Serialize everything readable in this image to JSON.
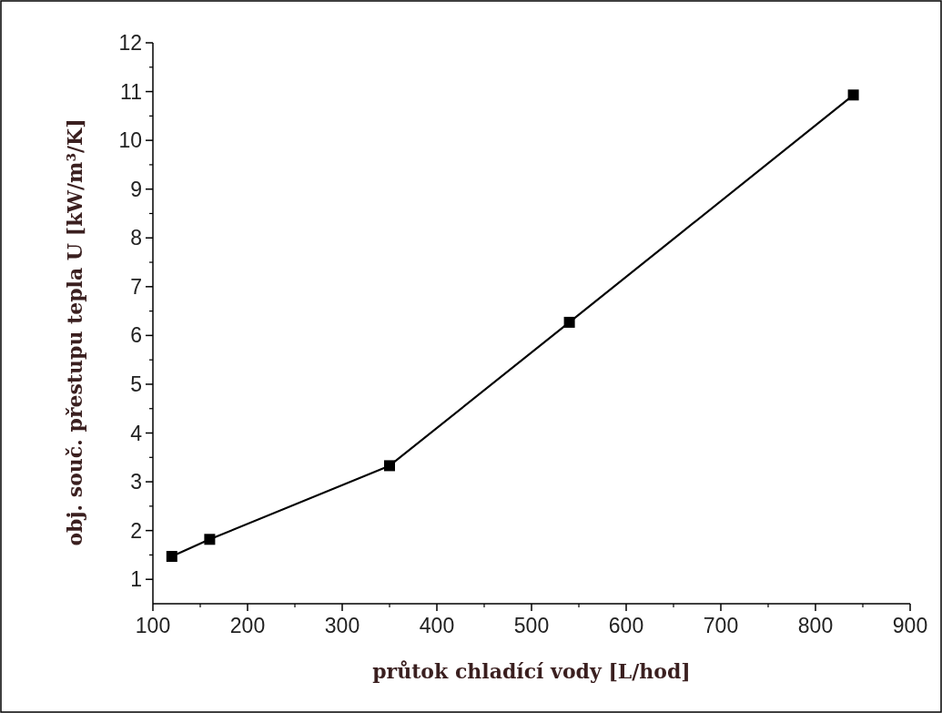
{
  "chart_data": {
    "type": "line",
    "xlabel": "průtok chladící vody [L/hod]",
    "ylabel": "obj. souč. přestupu tepla U [kW/m³/K]",
    "x": [
      120,
      160,
      350,
      540,
      840
    ],
    "series": [
      {
        "color": "#000000",
        "values": [
          1.47,
          1.82,
          3.33,
          6.27,
          10.93
        ]
      }
    ],
    "xlim": [
      100,
      900
    ],
    "xticks": [
      100,
      200,
      300,
      400,
      500,
      600,
      700,
      800,
      900
    ],
    "ylim": [
      0.5,
      12
    ],
    "yticks": [
      1,
      2,
      3,
      4,
      5,
      6,
      7,
      8,
      9,
      10,
      11,
      12
    ],
    "marker": "square",
    "line_style": "solid",
    "grid": false
  }
}
